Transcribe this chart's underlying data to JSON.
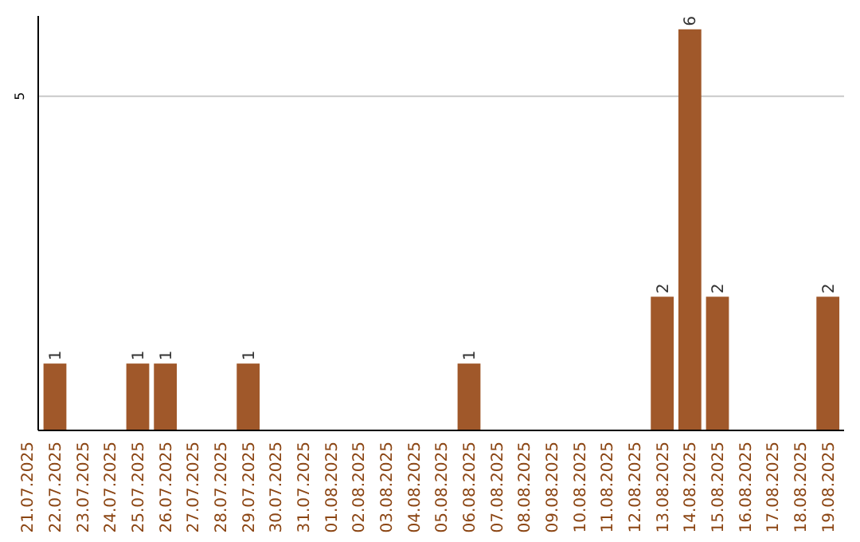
{
  "chart_data": {
    "type": "bar",
    "categories": [
      "21.07.2025",
      "22.07.2025",
      "23.07.2025",
      "24.07.2025",
      "25.07.2025",
      "26.07.2025",
      "27.07.2025",
      "28.07.2025",
      "29.07.2025",
      "30.07.2025",
      "31.07.2025",
      "01.08.2025",
      "02.08.2025",
      "03.08.2025",
      "04.08.2025",
      "05.08.2025",
      "06.08.2025",
      "07.08.2025",
      "08.08.2025",
      "09.08.2025",
      "10.08.2025",
      "11.08.2025",
      "12.08.2025",
      "13.08.2025",
      "14.08.2025",
      "15.08.2025",
      "16.08.2025",
      "17.08.2025",
      "18.08.2025",
      "19.08.2025"
    ],
    "values": [
      0,
      1,
      0,
      0,
      1,
      1,
      0,
      0,
      1,
      0,
      0,
      0,
      0,
      0,
      0,
      0,
      1,
      0,
      0,
      0,
      0,
      0,
      0,
      2,
      6,
      2,
      0,
      0,
      0,
      2
    ],
    "value_labels": [
      null,
      "1",
      null,
      null,
      "1",
      "1",
      null,
      null,
      "1",
      null,
      null,
      null,
      null,
      null,
      null,
      null,
      "1",
      null,
      null,
      null,
      null,
      null,
      null,
      "2",
      "6",
      "2",
      null,
      null,
      null,
      "2"
    ],
    "color": "#a0582a",
    "ylim": [
      0,
      6.2
    ],
    "yticks": [
      5
    ],
    "grid": "y"
  }
}
